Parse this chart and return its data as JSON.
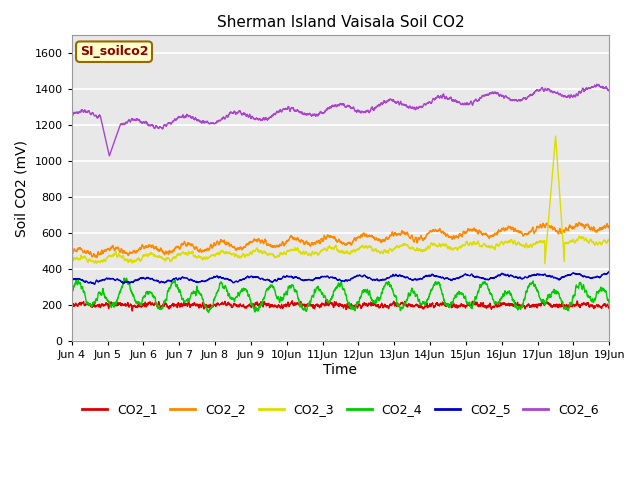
{
  "title": "Sherman Island Vaisala Soil CO2",
  "ylabel": "Soil CO2 (mV)",
  "xlabel": "Time",
  "annotation_text": "SI_soilco2",
  "annotation_bg": "#ffffcc",
  "annotation_border": "#996600",
  "annotation_text_color": "#8b0000",
  "bg_color": "#e8e8e8",
  "fig_color": "#ffffff",
  "ylim": [
    0,
    1700
  ],
  "yticks": [
    0,
    200,
    400,
    600,
    800,
    1000,
    1200,
    1400,
    1600
  ],
  "series_colors": {
    "CO2_1": "#dd0000",
    "CO2_2": "#ff8800",
    "CO2_3": "#dddd00",
    "CO2_4": "#00cc00",
    "CO2_5": "#0000cc",
    "CO2_6": "#aa44cc"
  }
}
